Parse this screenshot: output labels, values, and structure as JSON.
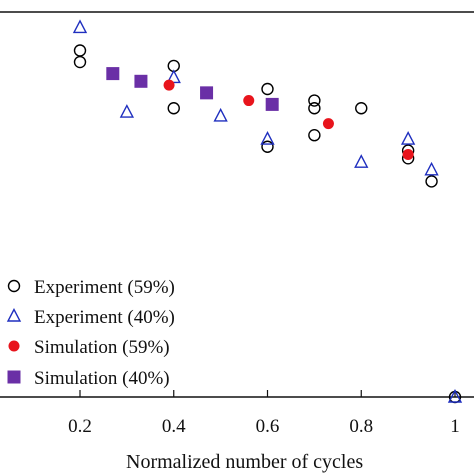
{
  "chart_data": {
    "type": "scatter",
    "title": "",
    "xlabel": "Normalized number of cycles",
    "ylabel": "",
    "xlim": [
      0.05,
      1.05
    ],
    "ylim": [
      0,
      1
    ],
    "x_ticks": [
      "0.2",
      "0.4",
      "0.6",
      "0.8",
      "1"
    ],
    "x_tick_values": [
      0.2,
      0.4,
      0.6,
      0.8,
      1.0
    ],
    "grid": false,
    "legend_position": "bottom-left",
    "series": [
      {
        "name": "Experiment (59%)",
        "marker": "open-circle",
        "color": "#000000",
        "points": [
          [
            0.2,
            0.9
          ],
          [
            0.2,
            0.87
          ],
          [
            0.4,
            0.86
          ],
          [
            0.4,
            0.75
          ],
          [
            0.6,
            0.8
          ],
          [
            0.6,
            0.65
          ],
          [
            0.7,
            0.77
          ],
          [
            0.7,
            0.75
          ],
          [
            0.7,
            0.68
          ],
          [
            0.8,
            0.75
          ],
          [
            0.9,
            0.64
          ],
          [
            0.9,
            0.62
          ],
          [
            0.95,
            0.56
          ],
          [
            1.0,
            0.0
          ]
        ]
      },
      {
        "name": "Experiment (40%)",
        "marker": "open-triangle",
        "color": "#1f2fbf",
        "points": [
          [
            0.2,
            0.96
          ],
          [
            0.3,
            0.74
          ],
          [
            0.4,
            0.83
          ],
          [
            0.5,
            0.73
          ],
          [
            0.6,
            0.67
          ],
          [
            0.8,
            0.61
          ],
          [
            0.9,
            0.67
          ],
          [
            0.95,
            0.59
          ],
          [
            1.0,
            0.0
          ]
        ]
      },
      {
        "name": "Simulation (59%)",
        "marker": "filled-circle",
        "color": "#e8141c",
        "points": [
          [
            0.39,
            0.81
          ],
          [
            0.56,
            0.77
          ],
          [
            0.73,
            0.71
          ],
          [
            0.9,
            0.63
          ]
        ]
      },
      {
        "name": "Simulation (40%)",
        "marker": "filled-square",
        "color": "#6a2fa6",
        "points": [
          [
            0.27,
            0.84
          ],
          [
            0.33,
            0.82
          ],
          [
            0.47,
            0.79
          ],
          [
            0.61,
            0.76
          ]
        ]
      }
    ]
  }
}
